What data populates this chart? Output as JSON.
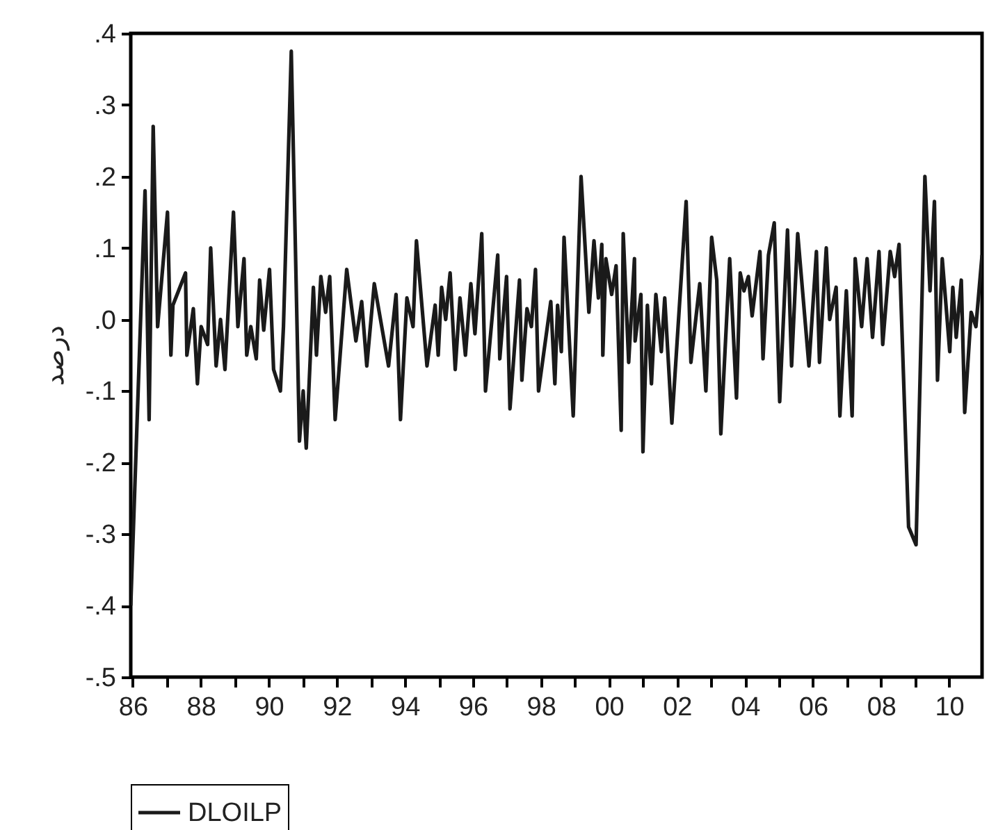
{
  "chart_data": {
    "type": "line",
    "ylabel": "درصد",
    "legend": "bottom",
    "xlim": [
      1985.94,
      2010.97
    ],
    "ylim": [
      -0.5,
      0.4
    ],
    "xticks": [
      {
        "value": 1986,
        "label": "86"
      },
      {
        "value": 1987,
        "label": null
      },
      {
        "value": 1988,
        "label": "88"
      },
      {
        "value": 1989,
        "label": null
      },
      {
        "value": 1990,
        "label": "90"
      },
      {
        "value": 1991,
        "label": null
      },
      {
        "value": 1992,
        "label": "92"
      },
      {
        "value": 1993,
        "label": null
      },
      {
        "value": 1994,
        "label": "94"
      },
      {
        "value": 1995,
        "label": null
      },
      {
        "value": 1996,
        "label": "96"
      },
      {
        "value": 1997,
        "label": null
      },
      {
        "value": 1998,
        "label": "98"
      },
      {
        "value": 1999,
        "label": null
      },
      {
        "value": 2000,
        "label": "00"
      },
      {
        "value": 2001,
        "label": null
      },
      {
        "value": 2002,
        "label": "02"
      },
      {
        "value": 2003,
        "label": null
      },
      {
        "value": 2004,
        "label": "04"
      },
      {
        "value": 2005,
        "label": null
      },
      {
        "value": 2006,
        "label": "06"
      },
      {
        "value": 2007,
        "label": null
      },
      {
        "value": 2008,
        "label": "08"
      },
      {
        "value": 2009,
        "label": null
      },
      {
        "value": 2010,
        "label": "10"
      }
    ],
    "yticks": [
      {
        "value": -0.5,
        "label": "-.5"
      },
      {
        "value": -0.4,
        "label": "-.4"
      },
      {
        "value": -0.3,
        "label": "-.3"
      },
      {
        "value": -0.2,
        "label": "-.2"
      },
      {
        "value": -0.1,
        "label": "-.1"
      },
      {
        "value": 0,
        "label": ".0"
      },
      {
        "value": 0.1,
        "label": ".1"
      },
      {
        "value": 0.2,
        "label": ".2"
      },
      {
        "value": 0.3,
        "label": ".3"
      },
      {
        "value": 0.4,
        "label": ".4"
      }
    ],
    "x": [
      1985.94,
      1986.36,
      1986.48,
      1986.6,
      1986.73,
      1987.02,
      1987.12,
      1987.18,
      1987.55,
      1987.59,
      1987.78,
      1987.9,
      1988.01,
      1988.2,
      1988.29,
      1988.45,
      1988.58,
      1988.71,
      1988.96,
      1989.09,
      1989.27,
      1989.35,
      1989.47,
      1989.63,
      1989.73,
      1989.85,
      1990.02,
      1990.14,
      1990.34,
      1990.43,
      1990.66,
      1990.9,
      1991.01,
      1991.1,
      1991.31,
      1991.4,
      1991.53,
      1991.67,
      1991.79,
      1991.95,
      1992.29,
      1992.56,
      1992.73,
      1992.88,
      1993.1,
      1993.52,
      1993.74,
      1993.87,
      1994.06,
      1994.24,
      1994.34,
      1994.65,
      1994.89,
      1994.98,
      1995.08,
      1995.2,
      1995.33,
      1995.48,
      1995.62,
      1995.78,
      1995.94,
      1996.06,
      1996.26,
      1996.37,
      1996.73,
      1996.79,
      1996.99,
      1997.09,
      1997.37,
      1997.44,
      1997.59,
      1997.72,
      1997.84,
      1997.93,
      1998.29,
      1998.41,
      1998.49,
      1998.6,
      1998.68,
      1998.95,
      1999.18,
      1999.41,
      1999.56,
      1999.69,
      1999.79,
      1999.82,
      1999.91,
      2000.08,
      2000.21,
      2000.36,
      2000.42,
      2000.58,
      2000.75,
      2000.77,
      2000.94,
      2001,
      2001.13,
      2001.25,
      2001.38,
      2001.54,
      2001.64,
      2001.85,
      2002.27,
      2002.41,
      2002.67,
      2002.85,
      2003.02,
      2003.17,
      2003.29,
      2003.55,
      2003.75,
      2003.86,
      2003.97,
      2004.1,
      2004.21,
      2004.44,
      2004.53,
      2004.69,
      2004.86,
      2005.02,
      2005.25,
      2005.37,
      2005.55,
      2005.88,
      2006.1,
      2006.19,
      2006.39,
      2006.49,
      2006.68,
      2006.79,
      2006.98,
      2007.15,
      2007.24,
      2007.43,
      2007.59,
      2007.75,
      2007.94,
      2008.05,
      2008.27,
      2008.4,
      2008.53,
      2008.81,
      2009.03,
      2009.29,
      2009.44,
      2009.57,
      2009.66,
      2009.8,
      2010.02,
      2010.11,
      2010.21,
      2010.36,
      2010.46,
      2010.65,
      2010.79,
      2010.97
    ],
    "series": [
      {
        "name": "DLOILP",
        "color": "#1a1a1a",
        "values": [
          -0.4,
          0.18,
          -0.14,
          0.27,
          -0.01,
          0.15,
          -0.05,
          0.02,
          0.065,
          -0.05,
          0.015,
          -0.09,
          -0.01,
          -0.035,
          0.1,
          -0.065,
          0,
          -0.07,
          0.15,
          -0.01,
          0.085,
          -0.05,
          -0.01,
          -0.055,
          0.055,
          -0.015,
          0.07,
          -0.07,
          -0.1,
          -0.01,
          0.375,
          -0.17,
          -0.1,
          -0.18,
          0.045,
          -0.05,
          0.06,
          0.01,
          0.06,
          -0.14,
          0.07,
          -0.03,
          0.025,
          -0.065,
          0.05,
          -0.065,
          0.035,
          -0.14,
          0.03,
          -0.01,
          0.11,
          -0.065,
          0.02,
          -0.05,
          0.045,
          0,
          0.065,
          -0.07,
          0.03,
          -0.05,
          0.05,
          -0.02,
          0.12,
          -0.1,
          0.09,
          -0.055,
          0.06,
          -0.125,
          0.055,
          -0.085,
          0.015,
          -0.01,
          0.07,
          -0.1,
          0.025,
          -0.09,
          0.02,
          -0.045,
          0.115,
          -0.135,
          0.2,
          0.01,
          0.11,
          0.03,
          0.105,
          -0.05,
          0.085,
          0.035,
          0.075,
          -0.155,
          0.12,
          -0.06,
          0.085,
          -0.03,
          0.035,
          -0.185,
          0.02,
          -0.09,
          0.035,
          -0.045,
          0.03,
          -0.145,
          0.165,
          -0.06,
          0.05,
          -0.1,
          0.115,
          0.055,
          -0.16,
          0.085,
          -0.11,
          0.065,
          0.04,
          0.06,
          0.005,
          0.095,
          -0.055,
          0.09,
          0.135,
          -0.115,
          0.125,
          -0.065,
          0.12,
          -0.065,
          0.095,
          -0.06,
          0.1,
          0,
          0.045,
          -0.135,
          0.04,
          -0.135,
          0.085,
          -0.01,
          0.085,
          -0.025,
          0.095,
          -0.035,
          0.095,
          0.06,
          0.105,
          -0.29,
          -0.315,
          0.2,
          0.04,
          0.165,
          -0.085,
          0.085,
          -0.045,
          0.045,
          -0.025,
          0.055,
          -0.13,
          0.01,
          -0.01,
          0.09
        ]
      }
    ]
  }
}
